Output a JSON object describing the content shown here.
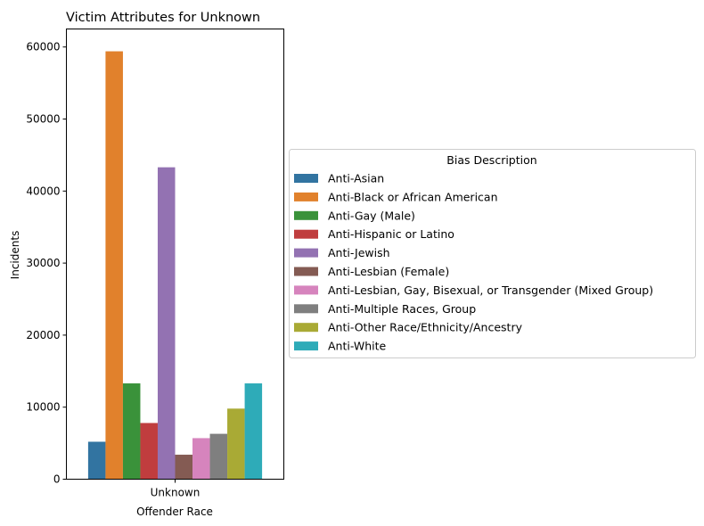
{
  "chart_data": {
    "type": "bar",
    "title": "Victim Attributes for Unknown",
    "xlabel": "Offender Race",
    "ylabel": "Incidents",
    "categories": [
      "Unknown"
    ],
    "ylim": [
      0,
      62500
    ],
    "yticks": [
      "0",
      "10000",
      "20000",
      "30000",
      "40000",
      "50000",
      "60000"
    ],
    "legend_title": "Bias Description",
    "legend_position": "center-right outside",
    "grid": false,
    "series": [
      {
        "name": "Anti-Asian",
        "color": "#3274a1",
        "values": [
          5200
        ]
      },
      {
        "name": "Anti-Black or African American",
        "color": "#e1812c",
        "values": [
          59400
        ]
      },
      {
        "name": "Anti-Gay (Male)",
        "color": "#3a923a",
        "values": [
          13300
        ]
      },
      {
        "name": "Anti-Hispanic or Latino",
        "color": "#c03d3e",
        "values": [
          7800
        ]
      },
      {
        "name": "Anti-Jewish",
        "color": "#9372b2",
        "values": [
          43300
        ]
      },
      {
        "name": "Anti-Lesbian (Female)",
        "color": "#845b53",
        "values": [
          3400
        ]
      },
      {
        "name": "Anti-Lesbian, Gay, Bisexual, or Transgender (Mixed Group)",
        "color": "#d684bd",
        "values": [
          5700
        ]
      },
      {
        "name": "Anti-Multiple Races, Group",
        "color": "#7f7f7f",
        "values": [
          6300
        ]
      },
      {
        "name": "Anti-Other Race/Ethnicity/Ancestry",
        "color": "#a9aa35",
        "values": [
          9800
        ]
      },
      {
        "name": "Anti-White",
        "color": "#2eabb8",
        "values": [
          13300
        ]
      }
    ]
  }
}
